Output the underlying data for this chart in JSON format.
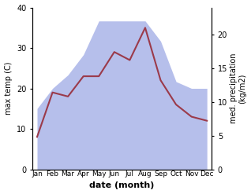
{
  "months": [
    "Jan",
    "Feb",
    "Mar",
    "Apr",
    "May",
    "Jun",
    "Jul",
    "Aug",
    "Sep",
    "Oct",
    "Nov",
    "Dec"
  ],
  "month_positions": [
    0,
    1,
    2,
    3,
    4,
    5,
    6,
    7,
    8,
    9,
    10,
    11
  ],
  "temp": [
    8,
    19,
    18,
    23,
    23,
    29,
    27,
    35,
    22,
    16,
    13,
    12
  ],
  "precip": [
    9,
    12,
    14,
    17,
    22,
    22,
    22,
    22,
    19,
    13,
    12,
    12
  ],
  "temp_color": "#9b3a4a",
  "precip_color": "#aab4e8",
  "precip_alpha": 0.85,
  "temp_ylim": [
    0,
    40
  ],
  "precip_ylim": [
    0,
    24
  ],
  "precip_yticks": [
    0,
    5,
    10,
    15,
    20
  ],
  "temp_yticks": [
    0,
    10,
    20,
    30,
    40
  ],
  "xlabel": "date (month)",
  "ylabel_left": "max temp (C)",
  "ylabel_right": "med. precipitation\n(kg/m2)",
  "figsize": [
    3.18,
    2.47
  ],
  "dpi": 100
}
